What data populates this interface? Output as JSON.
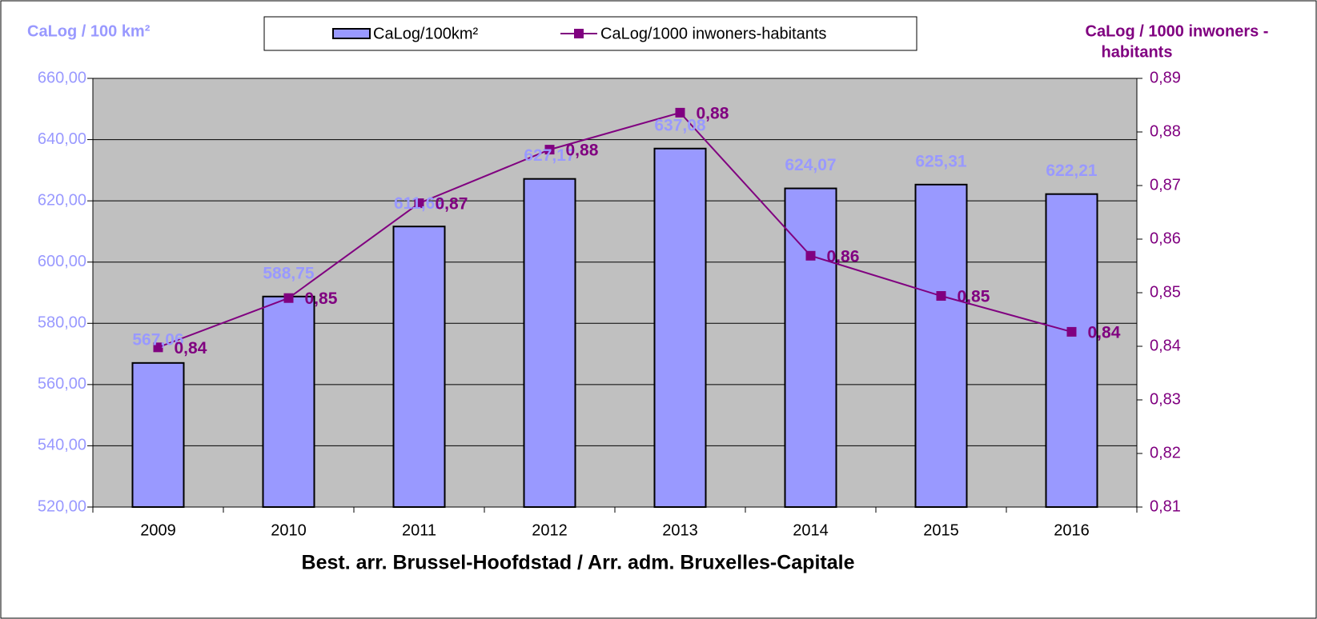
{
  "chart_data": {
    "type": "bar_line",
    "y_label": "CaLog / 100 km²",
    "y2_label": [
      "CaLog / 1000 inwoners -",
      "habitants"
    ],
    "x_label": "Best. arr. Brussel-Hoofdstad / Arr. adm. Bruxelles-Capitale",
    "categories": [
      "2009",
      "2010",
      "2011",
      "2012",
      "2013",
      "2014",
      "2015",
      "2016"
    ],
    "series": [
      {
        "name": "CaLog/100km²",
        "type": "bar",
        "color": "#9999ff",
        "values": [
          567.06,
          588.75,
          611.62,
          627.17,
          637.08,
          624.07,
          625.31,
          622.21
        ],
        "value_labels": [
          "567,06",
          "588,75",
          "611,62",
          "627,17",
          "637,08",
          "624,07",
          "625,31",
          "622,21"
        ]
      },
      {
        "name": "CaLog/1000 inwoners-habitants",
        "type": "line",
        "axis": "y2",
        "color": "#800080",
        "values": [
          0.8398,
          0.849,
          0.8667,
          0.8767,
          0.8836,
          0.8569,
          0.8494,
          0.8427
        ],
        "value_labels": [
          "0,84",
          "0,85",
          "0,87",
          "0,88",
          "0,88",
          "0,86",
          "0,85",
          "0,84"
        ]
      }
    ],
    "ylim": [
      520,
      660
    ],
    "yticks": [
      {
        "value": 520,
        "label": "520,00"
      },
      {
        "value": 540,
        "label": "540,00"
      },
      {
        "value": 560,
        "label": "560,00"
      },
      {
        "value": 580,
        "label": "580,00"
      },
      {
        "value": 600,
        "label": "600,00"
      },
      {
        "value": 620,
        "label": "620,00"
      },
      {
        "value": 640,
        "label": "640,00"
      },
      {
        "value": 660,
        "label": "660,00"
      }
    ],
    "y2lim": [
      0.81,
      0.89
    ],
    "y2ticks": [
      {
        "value": 0.81,
        "label": "0,81"
      },
      {
        "value": 0.82,
        "label": "0,82"
      },
      {
        "value": 0.83,
        "label": "0,83"
      },
      {
        "value": 0.84,
        "label": "0,84"
      },
      {
        "value": 0.85,
        "label": "0,85"
      },
      {
        "value": 0.86,
        "label": "0,86"
      },
      {
        "value": 0.87,
        "label": "0,87"
      },
      {
        "value": 0.88,
        "label": "0,88"
      },
      {
        "value": 0.89,
        "label": "0,89"
      }
    ],
    "grid": true
  }
}
